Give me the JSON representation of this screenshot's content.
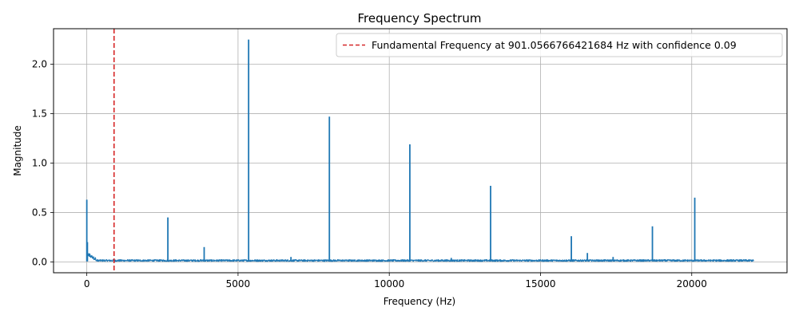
{
  "chart_data": {
    "type": "line",
    "title": "Frequency Spectrum",
    "xlabel": "Frequency (Hz)",
    "ylabel": "Magnitude",
    "xlim": [
      -1100,
      23150
    ],
    "ylim": [
      -0.11,
      2.36
    ],
    "xticks": [
      0,
      5000,
      10000,
      15000,
      20000
    ],
    "yticks": [
      0.0,
      0.5,
      1.0,
      1.5,
      2.0
    ],
    "xtick_labels": [
      "0",
      "5000",
      "10000",
      "15000",
      "20000"
    ],
    "ytick_labels": [
      "0.0",
      "0.5",
      "1.0",
      "1.5",
      "2.0"
    ],
    "grid": true,
    "legend_position": "top-right",
    "series": [
      {
        "name": "",
        "color": "#1f77b4",
        "noise_floor": 0.015,
        "x_range": [
          0,
          22050
        ],
        "peaks": [
          {
            "x": 0,
            "y": 0.63
          },
          {
            "x": 20,
            "y": 0.2
          },
          {
            "x": 2680,
            "y": 0.45
          },
          {
            "x": 3880,
            "y": 0.15
          },
          {
            "x": 5350,
            "y": 2.25
          },
          {
            "x": 6750,
            "y": 0.05
          },
          {
            "x": 8020,
            "y": 1.47
          },
          {
            "x": 10680,
            "y": 1.19
          },
          {
            "x": 12050,
            "y": 0.04
          },
          {
            "x": 13350,
            "y": 0.77
          },
          {
            "x": 16020,
            "y": 0.26
          },
          {
            "x": 16550,
            "y": 0.09
          },
          {
            "x": 17400,
            "y": 0.05
          },
          {
            "x": 18700,
            "y": 0.36
          },
          {
            "x": 20100,
            "y": 0.65
          }
        ]
      }
    ],
    "annotation_line": {
      "x": 901.0566766421684,
      "color": "#d62728",
      "style": "dashed",
      "label": "Fundamental Frequency at 901.0566766421684 Hz with confidence 0.09"
    }
  }
}
